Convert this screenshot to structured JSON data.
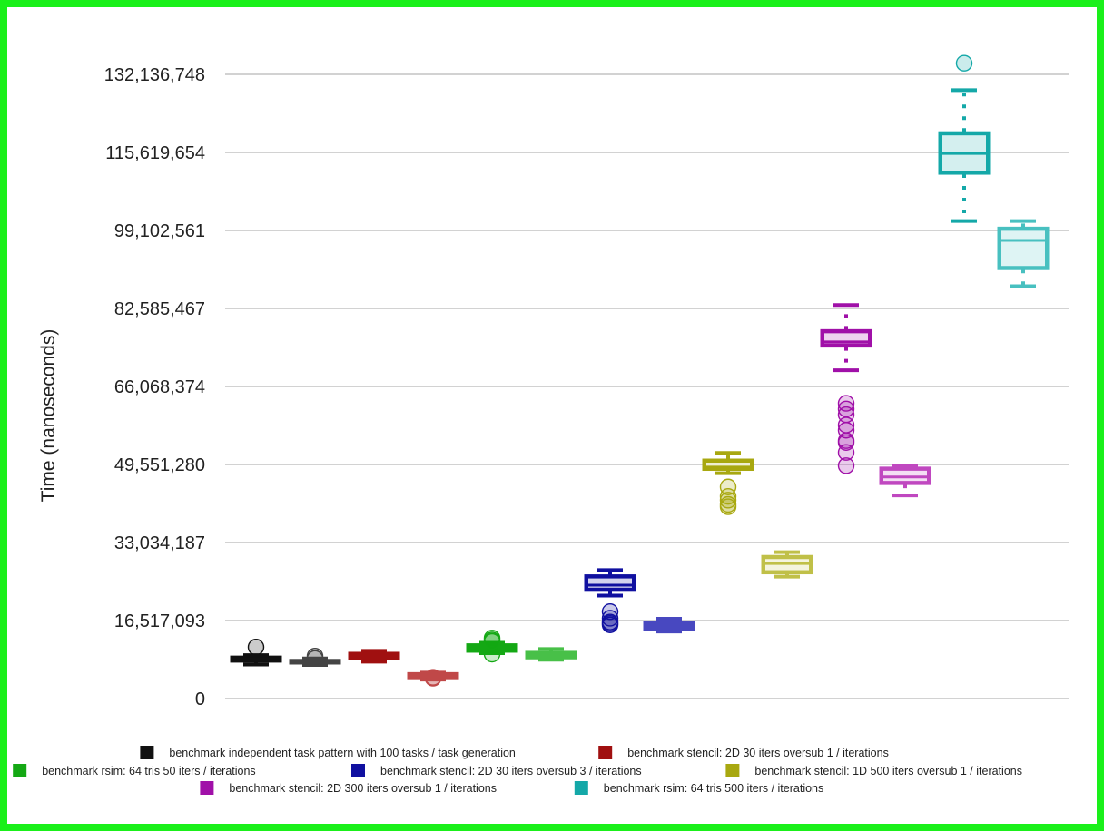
{
  "chart_data": {
    "type": "boxplot",
    "title": "",
    "xlabel": "",
    "ylabel": "Time (nanoseconds)",
    "ylim": [
      0,
      134500000
    ],
    "yticks": [
      0,
      16517093,
      33034187,
      49551280,
      66068374,
      82585467,
      99102561,
      115619654,
      132136748
    ],
    "ytick_labels": [
      "0",
      "16,517,093",
      "33,034,187",
      "49,551,280",
      "66,068,374",
      "82,585,467",
      "99,102,561",
      "115,619,654",
      "132,136,748"
    ],
    "grid": true,
    "legend_position": "bottom",
    "legend": [
      {
        "label": "benchmark independent task pattern with  100 tasks / task generation",
        "color": "#111111"
      },
      {
        "label": "benchmark stencil: 2D  30 iters oversub 1 / iterations",
        "color": "#a01010"
      },
      {
        "label": "benchmark rsim:   64 tris  50 iters / iterations",
        "color": "#14a814"
      },
      {
        "label": "benchmark stencil: 2D  30 iters oversub 3 / iterations",
        "color": "#1010a0"
      },
      {
        "label": "benchmark stencil: 1D 500 iters oversub 1 / iterations",
        "color": "#a8a810"
      },
      {
        "label": "benchmark stencil: 2D 300 iters oversub 1 / iterations",
        "color": "#a010a8"
      },
      {
        "label": "benchmark rsim:   64 tris 500 iters / iterations",
        "color": "#14a8a8"
      }
    ],
    "boxes": [
      {
        "group": 0,
        "color": "#111111",
        "whisker_low": 7200000,
        "q1": 7700000,
        "median": 8400000,
        "q3": 9000000,
        "whisker_high": 9200000,
        "outliers": [
          10900000
        ]
      },
      {
        "group": 0,
        "color": "#444444",
        "whisker_low": 7100000,
        "q1": 7300000,
        "median": 7800000,
        "q3": 8300000,
        "whisker_high": 8500000,
        "outliers": [
          9000000,
          8500000
        ]
      },
      {
        "group": 1,
        "color": "#a01010",
        "whisker_low": 7800000,
        "q1": 8300000,
        "median": 9100000,
        "q3": 9800000,
        "whisker_high": 10100000,
        "outliers": []
      },
      {
        "group": 1,
        "color": "#c04848",
        "whisker_low": 4000000,
        "q1": 4000000,
        "median": 4700000,
        "q3": 5500000,
        "whisker_high": 5500000,
        "outliers": [
          4500000,
          4300000
        ]
      },
      {
        "group": 2,
        "color": "#14a814",
        "whisker_low": 9600000,
        "q1": 9800000,
        "median": 10800000,
        "q3": 11600000,
        "whisker_high": 11800000,
        "outliers": [
          12800000,
          12400000,
          9400000,
          12100000
        ]
      },
      {
        "group": 2,
        "color": "#48c048",
        "whisker_low": 8200000,
        "q1": 8400000,
        "median": 9200000,
        "q3": 10000000,
        "whisker_high": 10500000,
        "outliers": []
      },
      {
        "group": 3,
        "color": "#1010a0",
        "whisker_low": 21800000,
        "q1": 22700000,
        "median": 24000000,
        "q3": 26200000,
        "whisker_high": 27200000,
        "outliers": [
          18400000,
          17000000,
          16200000,
          15600000,
          15900000
        ]
      },
      {
        "group": 3,
        "color": "#4848c0",
        "whisker_low": 14200000,
        "q1": 14500000,
        "median": 15300000,
        "q3": 16400000,
        "whisker_high": 16900000,
        "outliers": []
      },
      {
        "group": 4,
        "color": "#a8a810",
        "whisker_low": 47700000,
        "q1": 48300000,
        "median": 49000000,
        "q3": 50700000,
        "whisker_high": 52000000,
        "outliers": [
          44800000,
          42800000,
          42000000,
          41100000,
          40600000
        ]
      },
      {
        "group": 4,
        "color": "#c0c048",
        "whisker_low": 25800000,
        "q1": 26400000,
        "median": 28600000,
        "q3": 30300000,
        "whisker_high": 31000000,
        "outliers": []
      },
      {
        "group": 5,
        "color": "#a010a8",
        "whisker_low": 69500000,
        "q1": 74400000,
        "median": 75500000,
        "q3": 78100000,
        "whisker_high": 83300000,
        "outliers": [
          62500000,
          61300000,
          60100000,
          57900000,
          56800000,
          54600000,
          54200000,
          52100000,
          49300000
        ]
      },
      {
        "group": 5,
        "color": "#c048c0",
        "whisker_low": 43000000,
        "q1": 45300000,
        "median": 46900000,
        "q3": 49000000,
        "whisker_high": 49300000,
        "outliers": []
      },
      {
        "group": 6,
        "color": "#14a8a8",
        "whisker_low": 101100000,
        "q1": 111000000,
        "median": 115400000,
        "q3": 120000000,
        "whisker_high": 128800000,
        "outliers": [
          134500000
        ]
      },
      {
        "group": 6,
        "color": "#48c0c0",
        "whisker_low": 87300000,
        "q1": 90800000,
        "median": 97000000,
        "q3": 99800000,
        "whisker_high": 101100000,
        "outliers": []
      }
    ]
  }
}
